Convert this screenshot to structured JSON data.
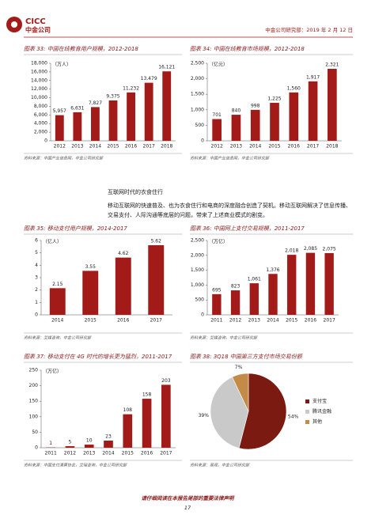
{
  "header": {
    "logo": "CICC",
    "logo_cn": "中金公司",
    "report": "中金公司研究部：2019 年 2 月 12 日"
  },
  "chart_data": [
    {
      "type": "bar",
      "title": "图表 33: 中国在线教育用户规模，2012-2018",
      "y_label": "（万人）",
      "categories": [
        "2012",
        "2013",
        "2014",
        "2015",
        "2016",
        "2017",
        "2018"
      ],
      "values": [
        5957,
        6631,
        7827,
        9375,
        11232,
        13479,
        16121
      ],
      "value_labels": [
        "5,957",
        "6,631",
        "7,827",
        "9,375",
        "11,232",
        "13,479",
        "16,121"
      ],
      "color": "#a31b18",
      "ylim": [
        0,
        18000
      ],
      "yticks": [
        0,
        {
          "value": 2000,
          "label": "2,000"
        },
        {
          "value": 4000,
          "label": "4,000"
        },
        {
          "value": 6000,
          "label": "6,000"
        },
        {
          "value": 8000,
          "label": "8,000"
        },
        {
          "value": 10000,
          "label": "10,000"
        },
        {
          "value": 12000,
          "label": "12,000"
        },
        {
          "value": 14000,
          "label": "14,000"
        },
        {
          "value": 16000,
          "label": "16,000"
        },
        {
          "value": 18000,
          "label": "18,000"
        }
      ],
      "source": "资料来源：中国产业信息网，中金公司研究部"
    },
    {
      "type": "bar",
      "title": "图表 34: 中国在线教育市场规模，2012-2018",
      "y_label": "（亿元）",
      "categories": [
        "2012",
        "2013",
        "2014",
        "2015",
        "2016",
        "2017",
        "2018"
      ],
      "values": [
        701,
        840,
        998,
        1225,
        1560,
        1917,
        2321
      ],
      "value_labels": [
        "701",
        "840",
        "998",
        "1,225",
        "1,560",
        "1,917",
        "2,321"
      ],
      "color": "#a31b18",
      "ylim": [
        0,
        2500
      ],
      "yticks": [
        0,
        500,
        {
          "value": 1000,
          "label": "1,000"
        },
        {
          "value": 1500,
          "label": "1,500"
        },
        {
          "value": 2000,
          "label": "2,000"
        },
        {
          "value": 2500,
          "label": "2,500"
        }
      ],
      "source": "资料来源：中国产业信息网，中金公司研究部"
    },
    {
      "type": "bar",
      "title": "图表 35: 移动支付用户规模，2014-2017",
      "y_label": "（亿人）",
      "categories": [
        "2014",
        "2015",
        "2016",
        "2017"
      ],
      "values": [
        2.15,
        3.55,
        4.62,
        5.62
      ],
      "color": "#a31b18",
      "ylim": [
        0,
        6
      ],
      "yticks": [
        0,
        1,
        2,
        3,
        4,
        5,
        6
      ],
      "source": "资料来源：艾媒咨询，中金公司研究部"
    },
    {
      "type": "bar",
      "title": "图表 36: 中国网上支付交易规模，2011-2017",
      "y_label": "（万亿）",
      "categories": [
        "2011",
        "2012",
        "2013",
        "2014",
        "2015",
        "2016",
        "2017"
      ],
      "values": [
        695,
        823,
        1061,
        1376,
        2018,
        2085,
        2075
      ],
      "value_labels": [
        "695",
        "823",
        "1,061",
        "1,376",
        "2,018",
        "2,085",
        "2,075"
      ],
      "color": "#a31b18",
      "ylim": [
        0,
        2500
      ],
      "yticks": [
        0,
        500,
        {
          "value": 1000,
          "label": "1,000"
        },
        {
          "value": 1500,
          "label": "1,500"
        },
        {
          "value": 2000,
          "label": "2,000"
        },
        {
          "value": 2500,
          "label": "2,500"
        }
      ],
      "source": "资料来源：艾媒咨询，中金公司研究部"
    },
    {
      "type": "bar",
      "title": "图表 37: 移动支付在 4G 时代的增长更为猛烈，2011-2017",
      "y_label": "（万亿）",
      "categories": [
        "2011",
        "2012",
        "2013",
        "2014",
        "2015",
        "2016",
        "2017"
      ],
      "values": [
        1,
        5,
        10,
        23,
        108,
        158,
        203
      ],
      "color": "#a31b18",
      "ylim": [
        0,
        250
      ],
      "yticks": [
        0,
        50,
        100,
        150,
        200,
        250
      ],
      "source": "资料来源：中国支付清算协会，艾瑞咨询，中金公司研究部"
    },
    {
      "type": "pie",
      "title": "图表 38: 3Q18 中国第三方支付市场交易份额",
      "categories": [
        "支付宝",
        "腾讯金融",
        "其他"
      ],
      "values": [
        54,
        39,
        7
      ],
      "value_labels": [
        "54%",
        "39%",
        "7%"
      ],
      "colors": [
        "#7b1a10",
        "#c9c9c9",
        "#c48a48"
      ],
      "source": "资料来源：易观，中金公司研究部"
    }
  ],
  "section": {
    "heading": "互联网时代的衣食住行",
    "paragraph": "移动互联网的快速普及、也为衣食住行和电商的深度融合创造了契机。移动互联网解决了信息传播、交易支付、人际沟通等底层的问题，带来了上述商业模式的剧变。"
  },
  "footer": {
    "disclaimer": "请仔细阅读在本报告尾部的重要法律声明",
    "page": "17"
  }
}
